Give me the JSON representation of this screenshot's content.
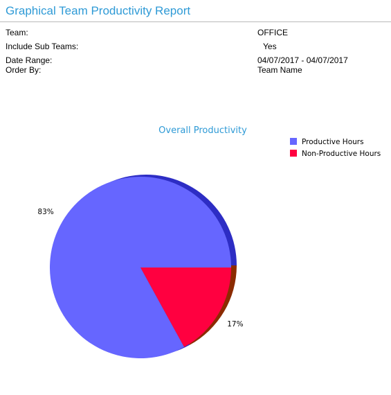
{
  "report": {
    "title": "Graphical Team Productivity Report",
    "fields": {
      "team_label": "Team:",
      "team_value": "OFFICE",
      "subteams_label": "Include Sub Teams:",
      "subteams_value": "Yes",
      "date_range_label": "Date Range:",
      "date_range_value": "04/07/2017 - 04/07/2017",
      "order_by_label": "Order By:",
      "order_by_value": "Team Name"
    }
  },
  "chart_data": {
    "type": "pie",
    "title": "Overall Productivity",
    "legend_position": "top-right",
    "slices": [
      {
        "name": "Productive Hours",
        "value": 83,
        "label": "83%",
        "color": "#6666ff",
        "side_color": "#2d2dc4"
      },
      {
        "name": "Non-Productive Hours",
        "value": 17,
        "label": "17%",
        "color": "#ff0040",
        "side_color": "#8b2b00"
      }
    ]
  }
}
